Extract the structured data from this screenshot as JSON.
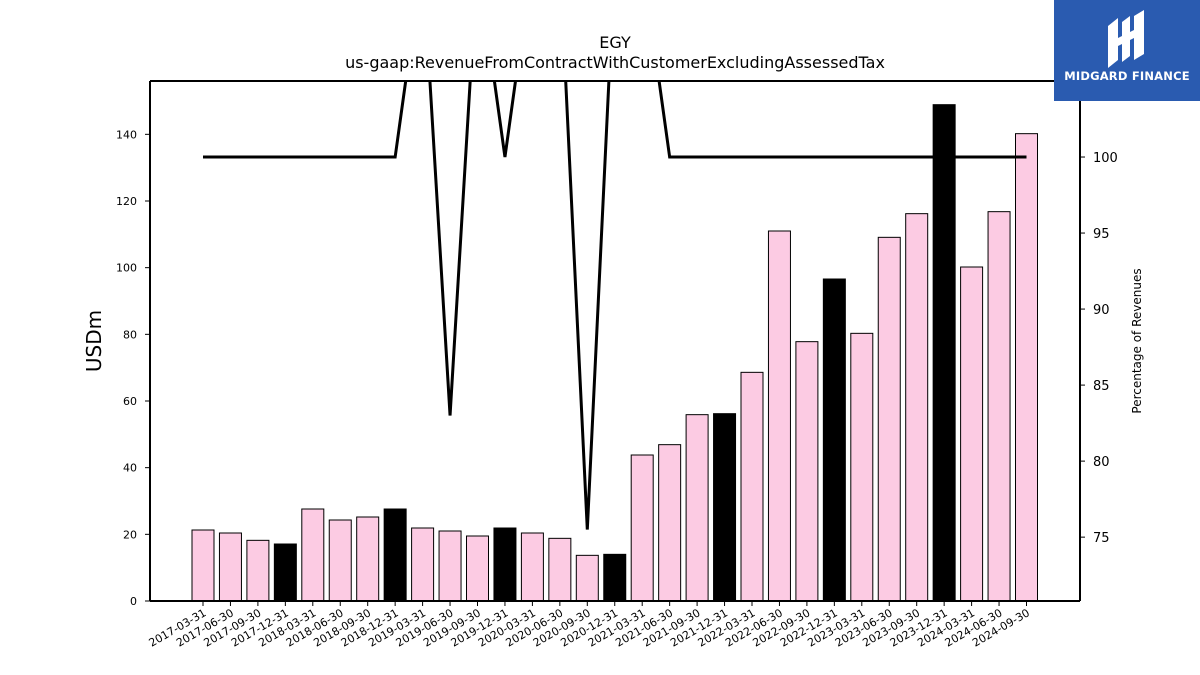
{
  "brand": {
    "name": "MIDGARD FINANCE",
    "color": "#2a5bb0"
  },
  "chart_data": {
    "type": "bar",
    "title": "EGY",
    "subtitle": "us-gaap:RevenueFromContractWithCustomerExcludingAssessedTax",
    "ylabel": "USDm",
    "y2label": "Percentage of Revenues",
    "ylim": [
      0,
      156
    ],
    "y2lim": [
      70.8,
      105
    ],
    "yticks": [
      0,
      20,
      40,
      60,
      80,
      100,
      120,
      140
    ],
    "y2ticks": [
      75,
      80,
      85,
      90,
      95,
      100
    ],
    "categories": [
      "2017-03-31",
      "2017-06-30",
      "2017-09-30",
      "2017-12-31",
      "2018-03-31",
      "2018-06-30",
      "2018-09-30",
      "2018-12-31",
      "2019-03-31",
      "2019-06-30",
      "2019-09-30",
      "2019-12-31",
      "2020-03-31",
      "2020-06-30",
      "2020-09-30",
      "2020-12-31",
      "2021-03-31",
      "2021-06-30",
      "2021-09-30",
      "2021-12-31",
      "2022-03-31",
      "2022-06-30",
      "2022-09-30",
      "2022-12-31",
      "2023-03-31",
      "2023-06-30",
      "2023-09-30",
      "2023-12-31",
      "2024-03-31",
      "2024-06-30",
      "2024-09-30"
    ],
    "series": [
      {
        "type": "bar",
        "values": [
          21.3,
          20.4,
          18.2,
          17.1,
          27.6,
          24.3,
          25.2,
          27.6,
          21.9,
          21.0,
          19.5,
          21.9,
          20.4,
          18.8,
          13.7,
          14.0,
          43.8,
          46.9,
          55.9,
          56.2,
          68.6,
          111.0,
          77.8,
          96.6,
          80.3,
          109.1,
          116.2,
          148.9,
          100.2,
          116.8,
          140.2
        ],
        "colors": [
          "#fccbe3",
          "#fccbe3",
          "#fccbe3",
          "#000000",
          "#fccbe3",
          "#fccbe3",
          "#fccbe3",
          "#000000",
          "#fccbe3",
          "#fccbe3",
          "#fccbe3",
          "#000000",
          "#fccbe3",
          "#fccbe3",
          "#fccbe3",
          "#000000",
          "#fccbe3",
          "#fccbe3",
          "#fccbe3",
          "#000000",
          "#fccbe3",
          "#fccbe3",
          "#fccbe3",
          "#000000",
          "#fccbe3",
          "#fccbe3",
          "#fccbe3",
          "#000000",
          "#fccbe3",
          "#fccbe3",
          "#fccbe3"
        ]
      },
      {
        "type": "line",
        "axis": "right",
        "color": "#000000",
        "values": [
          100,
          100,
          100,
          100,
          100,
          100,
          100,
          100,
          113,
          83,
          113,
          100,
          113,
          113,
          75.5,
          113,
          113,
          100,
          100,
          100,
          100,
          100,
          100,
          100,
          100,
          100,
          100,
          100,
          100,
          100,
          100
        ]
      }
    ],
    "bar_colors": {
      "regular": "#fccbe3",
      "year_end": "#000000"
    },
    "grid": false,
    "legend": "none"
  }
}
